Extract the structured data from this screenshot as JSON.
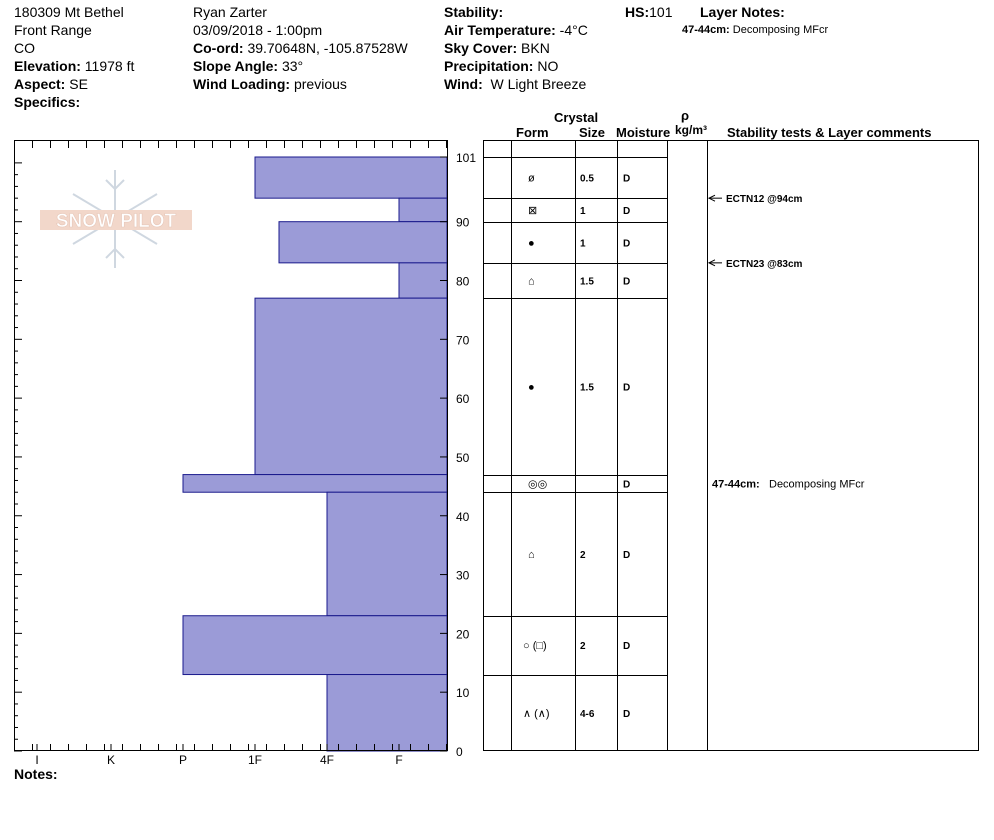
{
  "header": {
    "col1": {
      "site": "180309 Mt Bethel",
      "range": "Front Range",
      "state": "CO",
      "elevation_label": "Elevation:",
      "elevation": "11978 ft",
      "aspect_label": "Aspect:",
      "aspect": "SE",
      "specifics_label": "Specifics:"
    },
    "col2": {
      "observer": "Ryan Zarter",
      "datetime": "03/09/2018 - 1:00pm",
      "coord_label": "Co-ord:",
      "coord": "39.70648N, -105.87528W",
      "slope_label": "Slope Angle:",
      "slope": "33°",
      "wind_loading_label": "Wind Loading:",
      "wind_loading": "previous"
    },
    "col3": {
      "stability_label": "Stability:",
      "air_temp_label": "Air Temperature:",
      "air_temp": "-4°C",
      "sky_label": "Sky Cover:",
      "sky": "BKN",
      "precip_label": "Precipitation:",
      "precip": "NO",
      "wind_label": "Wind:",
      "wind": "W Light Breeze"
    },
    "col4": {
      "hs_label": "HS:",
      "hs": "101",
      "layer_notes_label": "Layer Notes:",
      "layer_note_range": "47-44cm:",
      "layer_note_text": "Decomposing MFcr"
    }
  },
  "columns": {
    "crystal": "Crystal",
    "form": "Form",
    "size": "Size",
    "moisture": "Moisture",
    "rho": "ρ",
    "density_unit": "kg/m³",
    "stability": "Stability tests & Layer comments"
  },
  "notes_label": "Notes:",
  "watermark": "SNOW PILOT",
  "colors": {
    "hardness_bar": "#9b9bd7",
    "bar_stroke": "#1a1a8c"
  },
  "chart_data": {
    "type": "bar",
    "orientation": "horizontal",
    "y_axis": {
      "min": 0,
      "max": 101,
      "ticks": [
        0,
        10,
        20,
        30,
        40,
        50,
        60,
        70,
        80,
        90,
        101
      ]
    },
    "x_axis": {
      "categories": [
        "I",
        "K",
        "P",
        "1F",
        "4F",
        "F"
      ]
    },
    "layers": [
      {
        "top": 101,
        "bottom": 94,
        "hardness": "1F",
        "form": "PPgp",
        "size": "0.5",
        "moisture": "D"
      },
      {
        "top": 94,
        "bottom": 90,
        "hardness": "F",
        "form": "SH",
        "size": "1",
        "moisture": "D"
      },
      {
        "top": 90,
        "bottom": 83,
        "hardness": "1F-",
        "form": "MF",
        "size": "1",
        "moisture": "D"
      },
      {
        "top": 83,
        "bottom": 77,
        "hardness": "F",
        "form": "DH",
        "size": "1.5",
        "moisture": "D"
      },
      {
        "top": 77,
        "bottom": 47,
        "hardness": "1F",
        "form": "MF",
        "size": "1.5",
        "moisture": "D"
      },
      {
        "top": 47,
        "bottom": 44,
        "hardness": "P",
        "form": "MFcr",
        "size": "",
        "moisture": "D"
      },
      {
        "top": 44,
        "bottom": 23,
        "hardness": "4F",
        "form": "DH",
        "size": "2",
        "moisture": "D"
      },
      {
        "top": 23,
        "bottom": 13,
        "hardness": "P",
        "form": "RG(FC)",
        "size": "2",
        "moisture": "D"
      },
      {
        "top": 13,
        "bottom": 0,
        "hardness": "4F",
        "form": "DH(DHch)",
        "size": "4-6",
        "moisture": "D"
      }
    ],
    "stability_tests": [
      {
        "depth": 94,
        "label": "ECTN12 @94cm"
      },
      {
        "depth": 83,
        "label": "ECTN23 @83cm"
      }
    ],
    "layer_comments": [
      {
        "depth": 45.5,
        "range": "47-44cm:",
        "text": "Decomposing MFcr"
      }
    ]
  }
}
